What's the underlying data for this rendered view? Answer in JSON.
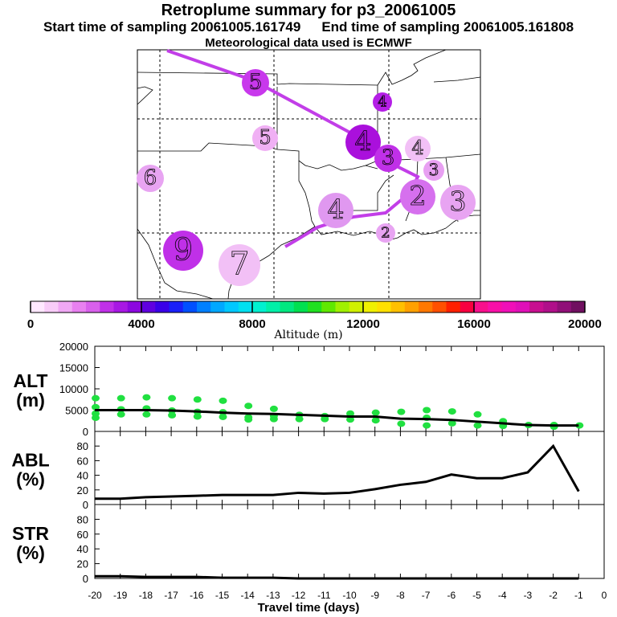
{
  "header": {
    "title": "Retroplume summary for p3_20061005",
    "start_label": "Start time of sampling 20061005.161749",
    "end_label": "End time of sampling 20061005.161808",
    "met_label": "Meteorological data used is ECMWF"
  },
  "map": {
    "markers": [
      {
        "label": "5",
        "color": "#c838ec"
      },
      {
        "label": "4",
        "color": "#b41ee6"
      },
      {
        "label": "5",
        "color": "#f0b0f4"
      },
      {
        "label": "4",
        "color": "#aa10dc"
      },
      {
        "label": "3",
        "color": "#c030e8"
      },
      {
        "label": "4",
        "color": "#f2c0f6"
      },
      {
        "label": "3",
        "color": "#e8a0f2"
      },
      {
        "label": "6",
        "color": "#e8a4f2"
      },
      {
        "label": "4",
        "color": "#e098f0"
      },
      {
        "label": "2",
        "color": "#d670ee"
      },
      {
        "label": "3",
        "color": "#e8a4f2"
      },
      {
        "label": "2",
        "color": "#e8a4f2"
      },
      {
        "label": "9",
        "color": "#c030e8"
      },
      {
        "label": "7",
        "color": "#f2c0f6"
      }
    ]
  },
  "colorbar": {
    "ticks": [
      "0",
      "4000",
      "8000",
      "12000",
      "16000",
      "20000"
    ],
    "label": "Altitude (m)",
    "colors": [
      "#ffe8ff",
      "#f8ccf8",
      "#f0a8f4",
      "#e880f0",
      "#d860ec",
      "#c030e8",
      "#a818e4",
      "#8c08e0",
      "#6000e0",
      "#3a00e8",
      "#1a20f8",
      "#0050ff",
      "#0080ff",
      "#00a8ff",
      "#00c8ff",
      "#00e0f0",
      "#00f0d0",
      "#00f0a8",
      "#00e880",
      "#00e050",
      "#20e020",
      "#60e800",
      "#a0f000",
      "#d0f000",
      "#f0f000",
      "#ffe000",
      "#ffc000",
      "#ffa000",
      "#ff7800",
      "#ff5000",
      "#ff2000",
      "#f80040",
      "#f8108c",
      "#f810a8",
      "#f010b8",
      "#e010b8",
      "#c81090",
      "#b0108a",
      "#901078",
      "#701060"
    ]
  },
  "chart_data": [
    {
      "type": "line",
      "name": "ALT",
      "ylabel": "ALT\n(m)",
      "ylabel_lines": [
        "ALT",
        "(m)"
      ],
      "ylim": [
        0,
        20000
      ],
      "yticks": [
        "0",
        "5000",
        "10000",
        "15000",
        "20000"
      ],
      "x": [
        -20,
        -19,
        -18,
        -17,
        -16,
        -15,
        -14,
        -13,
        -12,
        -11,
        -10,
        -9,
        -8,
        -7,
        -6,
        -5,
        -4,
        -3,
        -2,
        -1
      ],
      "series": [
        {
          "name": "mean altitude",
          "values": [
            5000,
            5000,
            5000,
            4900,
            4700,
            4400,
            4200,
            4100,
            3900,
            3700,
            3500,
            3500,
            3000,
            2900,
            2700,
            2300,
            1900,
            1500,
            1400,
            1400
          ]
        }
      ],
      "scatter_points": [
        {
          "x": -20,
          "y": 7800
        },
        {
          "x": -20,
          "y": 5700
        },
        {
          "x": -20,
          "y": 4200
        },
        {
          "x": -20,
          "y": 3200
        },
        {
          "x": -19,
          "y": 7800
        },
        {
          "x": -19,
          "y": 5200
        },
        {
          "x": -19,
          "y": 4000
        },
        {
          "x": -18,
          "y": 8000
        },
        {
          "x": -18,
          "y": 5400
        },
        {
          "x": -18,
          "y": 4000
        },
        {
          "x": -17,
          "y": 7800
        },
        {
          "x": -17,
          "y": 4900
        },
        {
          "x": -17,
          "y": 3800
        },
        {
          "x": -16,
          "y": 7500
        },
        {
          "x": -16,
          "y": 4600
        },
        {
          "x": -16,
          "y": 3500
        },
        {
          "x": -15,
          "y": 7200
        },
        {
          "x": -15,
          "y": 4500
        },
        {
          "x": -15,
          "y": 3400
        },
        {
          "x": -14,
          "y": 6000
        },
        {
          "x": -14,
          "y": 3300
        },
        {
          "x": -14,
          "y": 2800
        },
        {
          "x": -13,
          "y": 5300
        },
        {
          "x": -13,
          "y": 3600
        },
        {
          "x": -13,
          "y": 2900
        },
        {
          "x": -12,
          "y": 3900
        },
        {
          "x": -12,
          "y": 2900
        },
        {
          "x": -11,
          "y": 3600
        },
        {
          "x": -11,
          "y": 2900
        },
        {
          "x": -10,
          "y": 4200
        },
        {
          "x": -10,
          "y": 2800
        },
        {
          "x": -9,
          "y": 4400
        },
        {
          "x": -9,
          "y": 2600
        },
        {
          "x": -8,
          "y": 4600
        },
        {
          "x": -8,
          "y": 1800
        },
        {
          "x": -7,
          "y": 5000
        },
        {
          "x": -7,
          "y": 3200
        },
        {
          "x": -7,
          "y": 1400
        },
        {
          "x": -6,
          "y": 4700
        },
        {
          "x": -6,
          "y": 1900
        },
        {
          "x": -5,
          "y": 4000
        },
        {
          "x": -5,
          "y": 1400
        },
        {
          "x": -4,
          "y": 2400
        },
        {
          "x": -4,
          "y": 1300
        },
        {
          "x": -3,
          "y": 1500
        },
        {
          "x": -2,
          "y": 1500
        },
        {
          "x": -2,
          "y": 1100
        },
        {
          "x": -1,
          "y": 1400
        }
      ],
      "scatter_color": "#20e040"
    },
    {
      "type": "line",
      "name": "ABL",
      "ylabel": "ABL\n(%)",
      "ylabel_lines": [
        "ABL",
        "(%)"
      ],
      "ylim": [
        0,
        100
      ],
      "yticks": [
        "0",
        "20",
        "40",
        "60",
        "80"
      ],
      "x": [
        -20,
        -19,
        -18,
        -17,
        -16,
        -15,
        -14,
        -13,
        -12,
        -11,
        -10,
        -9,
        -8,
        -7,
        -6,
        -5,
        -4,
        -3,
        -2,
        -1
      ],
      "series": [
        {
          "name": "ABL fraction",
          "values": [
            8,
            8,
            10,
            11,
            12,
            13,
            13,
            13,
            16,
            15,
            16,
            21,
            27,
            31,
            41,
            36,
            36,
            44,
            80,
            18
          ]
        }
      ]
    },
    {
      "type": "line",
      "name": "STR",
      "ylabel": "STR\n(%)",
      "ylabel_lines": [
        "STR",
        "(%)"
      ],
      "ylim": [
        0,
        100
      ],
      "yticks": [
        "0",
        "20",
        "40",
        "60",
        "80"
      ],
      "x": [
        -20,
        -19,
        -18,
        -17,
        -16,
        -15,
        -14,
        -13,
        -12,
        -11,
        -10,
        -9,
        -8,
        -7,
        -6,
        -5,
        -4,
        -3,
        -2,
        -1
      ],
      "series": [
        {
          "name": "stratospheric fraction",
          "values": [
            3,
            3,
            2,
            2,
            2,
            1,
            1,
            1,
            0,
            0,
            0,
            0,
            0,
            0,
            0,
            0,
            0,
            0,
            0,
            0
          ]
        }
      ]
    }
  ],
  "xaxis": {
    "ticks": [
      "-20",
      "-19",
      "-18",
      "-17",
      "-16",
      "-15",
      "-14",
      "-13",
      "-12",
      "-11",
      "-10",
      "-9",
      "-8",
      "-7",
      "-6",
      "-5",
      "-4",
      "-3",
      "-2",
      "-1",
      "0"
    ],
    "label": "Travel time (days)"
  }
}
